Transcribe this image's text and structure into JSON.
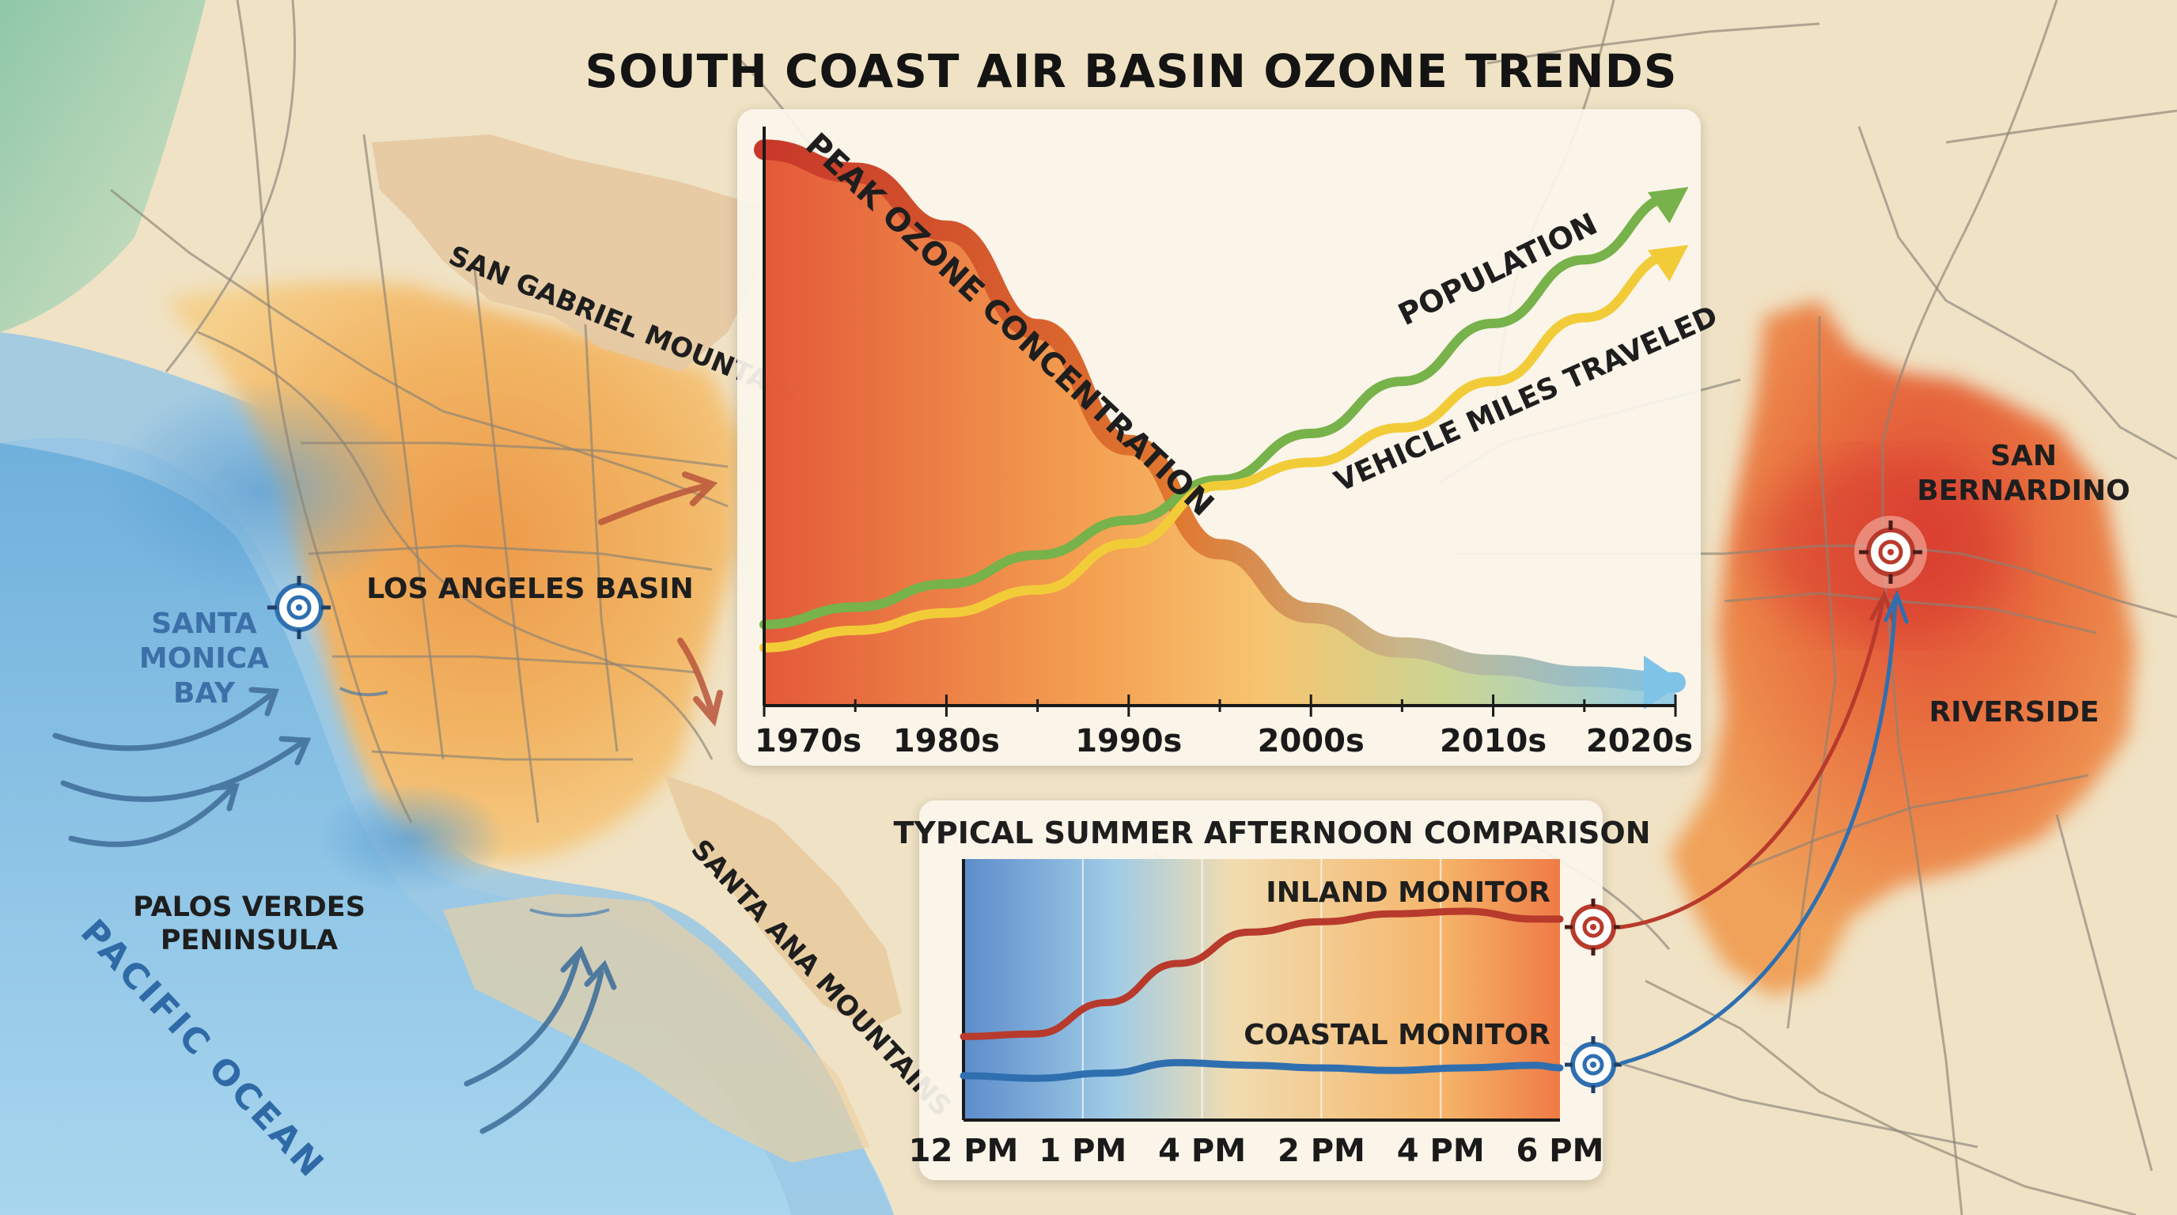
{
  "title": "SOUTH COAST AIR BASIN OZONE TRENDS",
  "map_labels": {
    "san_gabriel": "SAN GABRIEL MOUNTAINS",
    "la_basin": "LOS ANGELES BASIN",
    "santa_monica_bay": [
      "SANTA",
      "MONICA",
      "BAY"
    ],
    "palos_verdes": [
      "PALOS VERDES",
      "PENINSULA"
    ],
    "pacific_ocean": "PACIFIC OCEAN",
    "santa_ana": "SANTA ANA MOUNTAINS",
    "san_bernardino": [
      "SAN",
      "BERNARDINO"
    ],
    "riverside": "RIVERSIDE"
  },
  "colors": {
    "ozone": "#c8372a",
    "population": "#77b24a",
    "vmt": "#f2cc38",
    "inland": "#b83a2c",
    "coastal": "#2f6fb0",
    "ocean": "#7fbfe2"
  },
  "chart_data": [
    {
      "type": "line",
      "title": "",
      "x_labels": [
        "1970s",
        "1980s",
        "1990s",
        "2000s",
        "2010s",
        "2020s"
      ],
      "x_range": [
        1970,
        2020
      ],
      "y_axis": "unlabeled, relative",
      "y_range": [
        0,
        100
      ],
      "series": [
        {
          "name": "PEAK OZONE CONCENTRATION",
          "style": "filled area, downward arrow",
          "x": [
            1970,
            1975,
            1980,
            1985,
            1990,
            1995,
            2000,
            2005,
            2010,
            2015,
            2020
          ],
          "values": [
            96,
            92,
            82,
            65,
            45,
            27,
            16,
            10,
            7,
            5,
            4
          ]
        },
        {
          "name": "POPULATION",
          "style": "line with arrow",
          "x": [
            1970,
            1975,
            1980,
            1985,
            1990,
            1995,
            2000,
            2005,
            2010,
            2015,
            2020
          ],
          "values": [
            14,
            17,
            21,
            26,
            32,
            39,
            47,
            56,
            66,
            77,
            88
          ]
        },
        {
          "name": "VEHICLE MILES TRAVELED",
          "style": "line with arrow",
          "x": [
            1970,
            1975,
            1980,
            1985,
            1990,
            1995,
            2000,
            2005,
            2010,
            2015,
            2020
          ],
          "values": [
            10,
            13,
            16,
            20,
            28,
            38,
            42,
            48,
            56,
            67,
            78
          ]
        }
      ]
    },
    {
      "type": "line",
      "title": "TYPICAL SUMMER AFTERNOON COMPARISON",
      "x_labels": [
        "12 PM",
        "1 PM",
        "4 PM",
        "2 PM",
        "4 PM",
        "6 PM"
      ],
      "y_axis": "unlabeled, relative",
      "y_range": [
        0,
        100
      ],
      "series": [
        {
          "name": "INLAND MONITOR",
          "x": [
            0,
            0.6,
            1.2,
            1.8,
            2.4,
            3.0,
            3.6,
            4.2,
            4.8,
            5.0
          ],
          "values": [
            32,
            33,
            45,
            60,
            72,
            76,
            79,
            80,
            77,
            77
          ]
        },
        {
          "name": "COASTAL MONITOR",
          "x": [
            0,
            0.6,
            1.2,
            1.8,
            2.4,
            3.0,
            3.6,
            4.2,
            4.8,
            5.0
          ],
          "values": [
            17,
            16,
            18,
            22,
            21,
            20,
            19,
            20,
            21,
            20
          ]
        }
      ]
    }
  ]
}
